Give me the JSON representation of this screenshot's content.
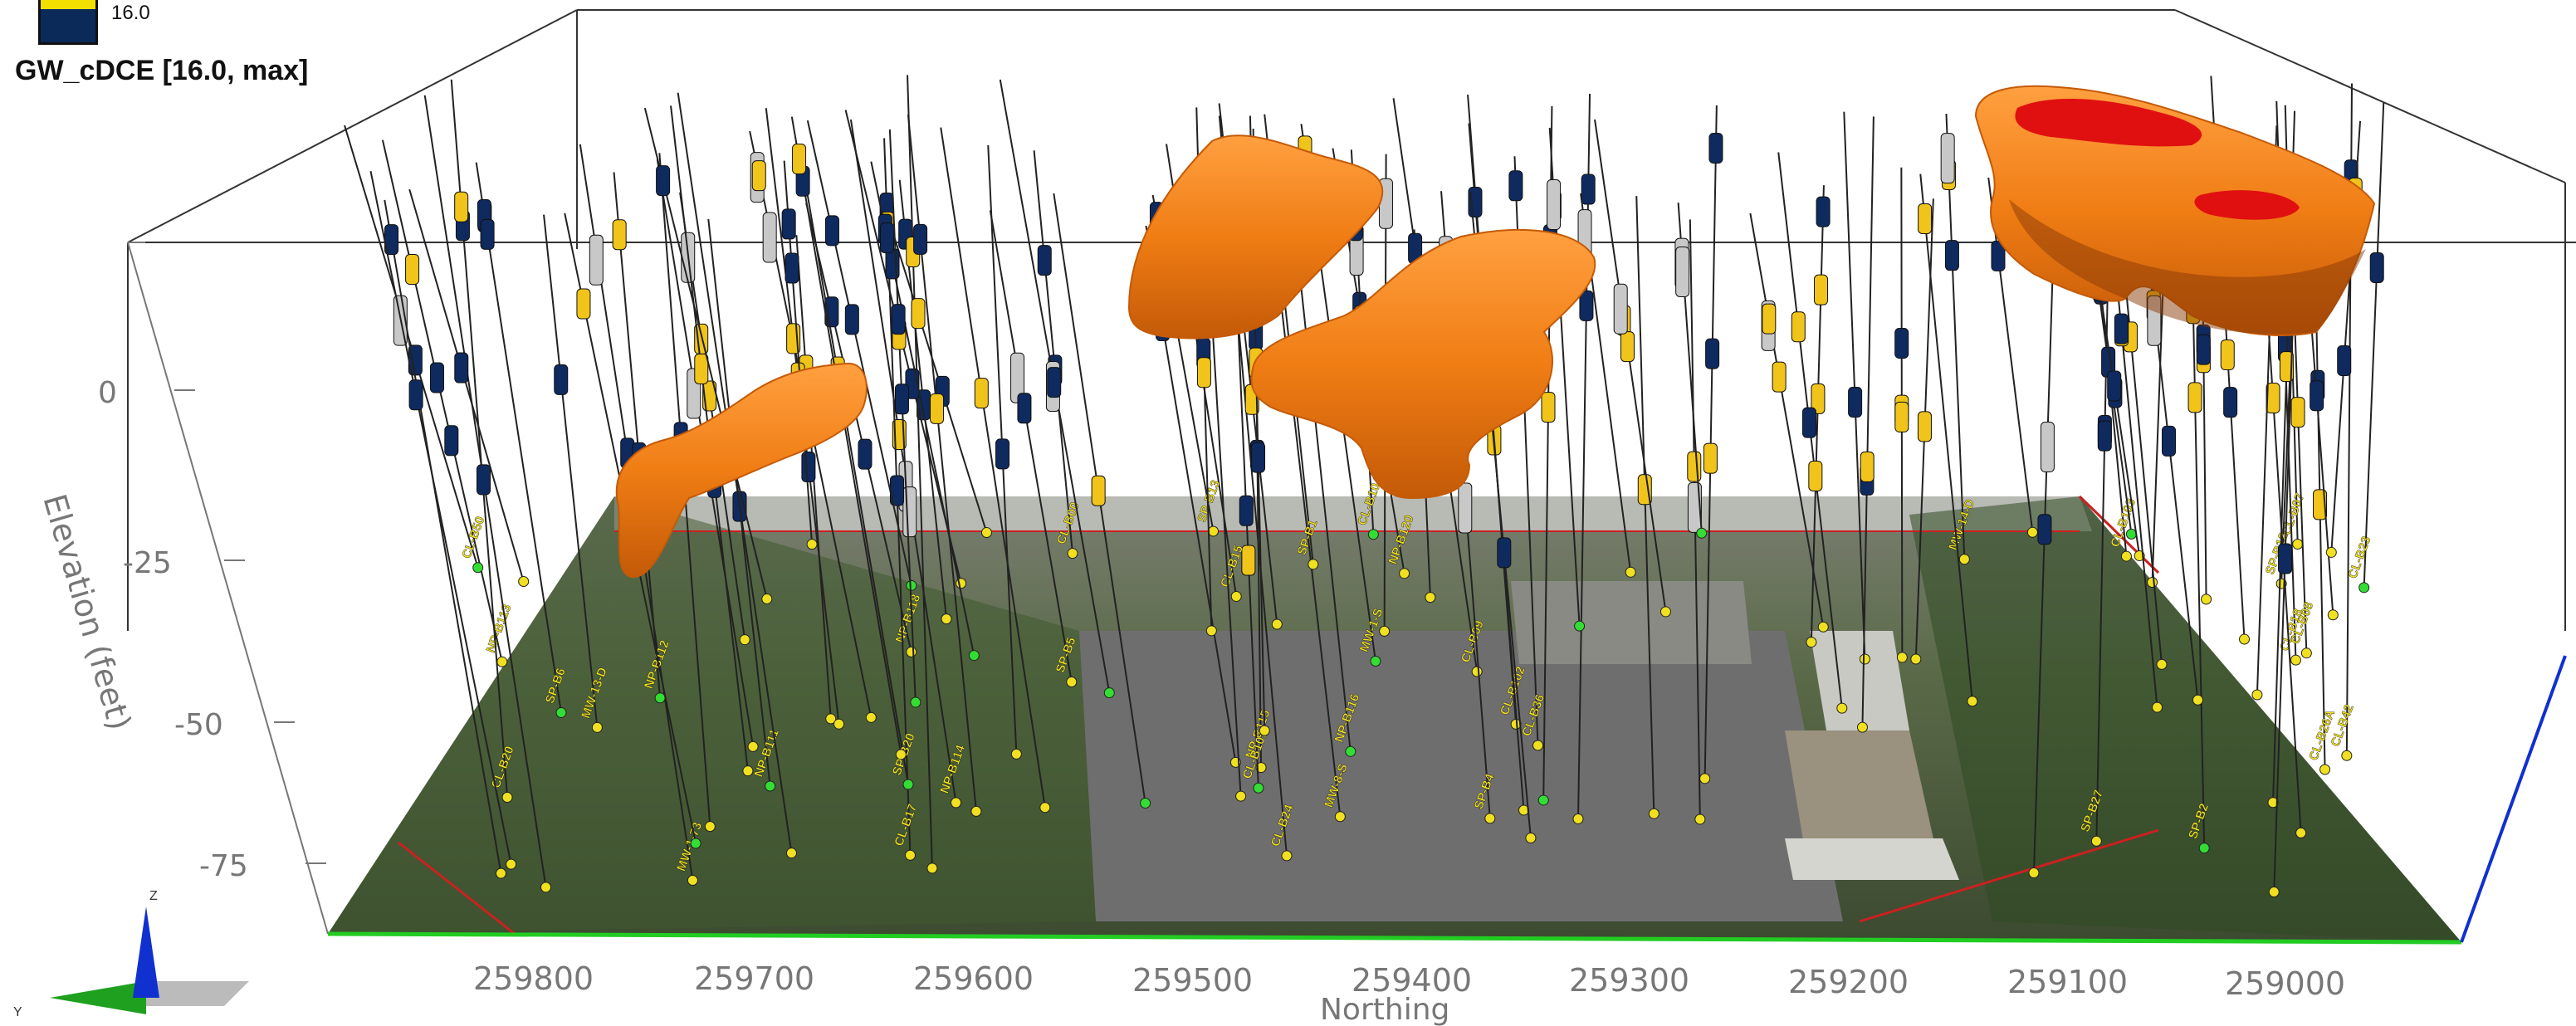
{
  "legend": {
    "value": "16.0",
    "title": "GW_cDCE [16.0, max]",
    "colors": {
      "top": "#f4e000",
      "bottom": "#0b2a5a"
    }
  },
  "axes": {
    "elevation_label": "Elevation (feet)",
    "elevation_ticks": [
      "0",
      "-25",
      "-50",
      "-75"
    ],
    "northing_label": "Northing",
    "northing_ticks": [
      "259800",
      "259700",
      "259600",
      "259500",
      "259400",
      "259300",
      "259200",
      "259100",
      "259000"
    ]
  },
  "triad": {
    "z": "Z",
    "y": "Y"
  },
  "wells": [
    {
      "label": "NP-B120"
    },
    {
      "label": "MW-14-D"
    },
    {
      "label": "MW-1-73"
    },
    {
      "label": "NP-B118"
    },
    {
      "label": "NP-B116"
    },
    {
      "label": "NP-B115"
    },
    {
      "label": "NP-B114"
    },
    {
      "label": "NP-B113"
    },
    {
      "label": "NP-B112"
    },
    {
      "label": "NP-B111"
    },
    {
      "label": "MW-13-D"
    },
    {
      "label": "MW-1-S"
    },
    {
      "label": "CL-B104"
    },
    {
      "label": "CL-B103"
    },
    {
      "label": "CL-B102"
    },
    {
      "label": "CL-B101"
    },
    {
      "label": "CL-B26A"
    },
    {
      "label": "CL-B23"
    },
    {
      "label": "CL-B07"
    },
    {
      "label": "CL-B15"
    },
    {
      "label": "CL-B00"
    },
    {
      "label": "CL-B20"
    },
    {
      "label": "CL-B17"
    },
    {
      "label": "CL-B18"
    },
    {
      "label": "CL-B08"
    },
    {
      "label": "CL-B09"
    },
    {
      "label": "CL-B24"
    },
    {
      "label": "CL-B42"
    },
    {
      "label": "CL-B36"
    },
    {
      "label": "CL-B50"
    },
    {
      "label": "SP-B27"
    },
    {
      "label": "SP-B12"
    },
    {
      "label": "SP-B6"
    },
    {
      "label": "SP-B5"
    },
    {
      "label": "MW-8-S"
    },
    {
      "label": "SP-B20"
    },
    {
      "label": "SP-B13"
    },
    {
      "label": "SP-B4"
    },
    {
      "label": "SP-B2"
    },
    {
      "label": "SP-B1"
    }
  ],
  "colors": {
    "plume": "#f07d14",
    "plume_dark": "#b4500a",
    "plume_hot": "#e01010",
    "navy_screen": "#0f2a5e",
    "yellow_screen": "#f0c41a",
    "grey_screen": "#c8c8c8",
    "ground_green": "#4a5a3a",
    "parking": "#6b6b6b",
    "axis_green": "#22cc22",
    "axis_blue": "#1030d0",
    "boundary_red": "#cc2020"
  }
}
